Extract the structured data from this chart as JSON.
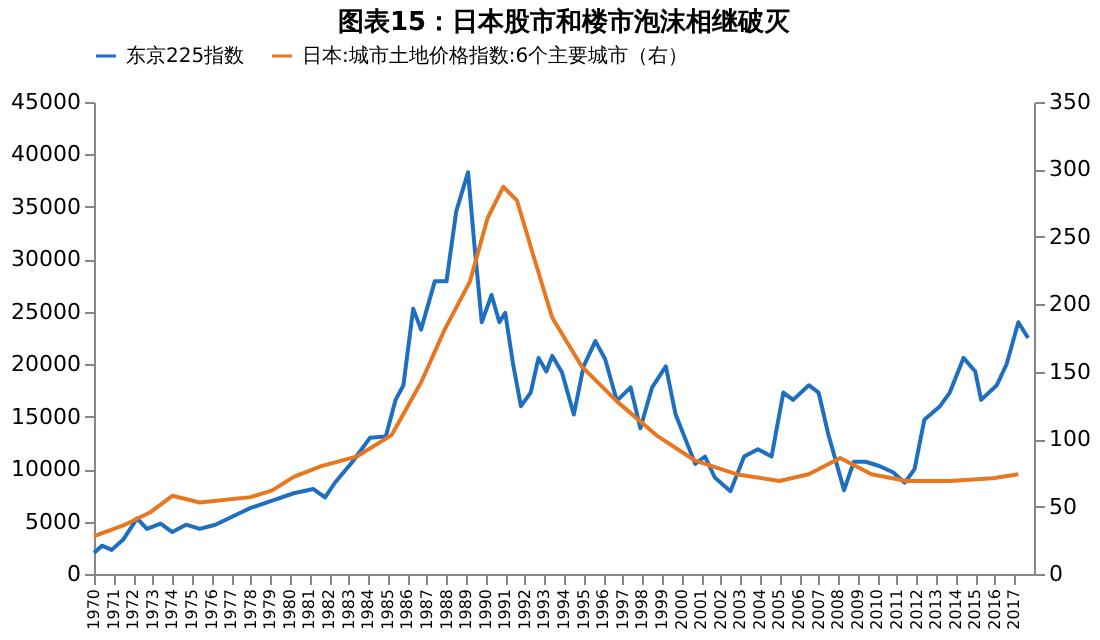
{
  "chart_data": {
    "type": "line",
    "title": "图表15：日本股市和楼市泡沫相继破灭",
    "xlim": [
      1970,
      2018
    ],
    "xticks": [
      1970,
      1971,
      1972,
      1973,
      1974,
      1975,
      1976,
      1977,
      1978,
      1979,
      1980,
      1981,
      1982,
      1983,
      1984,
      1985,
      1986,
      1987,
      1988,
      1989,
      1990,
      1991,
      1992,
      1993,
      1994,
      1995,
      1996,
      1997,
      1998,
      1999,
      2000,
      2001,
      2002,
      2003,
      2004,
      2005,
      2006,
      2007,
      2008,
      2009,
      2010,
      2011,
      2012,
      2013,
      2014,
      2015,
      2016,
      2017
    ],
    "ylim": [
      0,
      45000
    ],
    "yticks": [
      0,
      5000,
      10000,
      15000,
      20000,
      25000,
      30000,
      35000,
      40000,
      45000
    ],
    "y2lim": [
      0,
      350
    ],
    "y2ticks": [
      0,
      50,
      100,
      150,
      200,
      250,
      300,
      350
    ],
    "grid": false,
    "legend": "top",
    "marker": "none",
    "line_style": "solid",
    "series": [
      {
        "name": "东京225指数",
        "color": "#1f6fc0",
        "x": [
          1970.0,
          1970.4,
          1970.9,
          1971.5,
          1972.2,
          1972.7,
          1973.4,
          1974.0,
          1974.7,
          1975.4,
          1976.2,
          1977.1,
          1978.0,
          1979.1,
          1980.2,
          1981.2,
          1981.8,
          1982.3,
          1983.2,
          1984.1,
          1984.9,
          1985.4,
          1985.8,
          1986.3,
          1986.7,
          1987.4,
          1988.0,
          1988.5,
          1989.1,
          1989.4,
          1989.8,
          1990.3,
          1990.7,
          1991.0,
          1991.4,
          1991.8,
          1992.3,
          1992.7,
          1993.1,
          1993.4,
          1993.9,
          1994.5,
          1995.0,
          1995.6,
          1996.1,
          1996.7,
          1997.4,
          1997.9,
          1998.5,
          1999.2,
          1999.7,
          2000.7,
          2001.2,
          2001.7,
          2002.5,
          2003.2,
          2003.9,
          2004.6,
          2005.2,
          2005.7,
          2006.5,
          2007.0,
          2007.5,
          2008.3,
          2008.8,
          2009.4,
          2010.1,
          2010.8,
          2011.4,
          2011.9,
          2012.4,
          2013.2,
          2013.7,
          2014.4,
          2015.0,
          2015.3,
          2016.1,
          2016.6,
          2017.2,
          2017.7
        ],
        "values": [
          2000,
          2700,
          2300,
          3300,
          5300,
          4300,
          4800,
          4000,
          4700,
          4300,
          4700,
          5500,
          6300,
          7000,
          7700,
          8100,
          7300,
          8700,
          10700,
          13000,
          13100,
          16600,
          18000,
          25300,
          23300,
          27900,
          27900,
          34600,
          38300,
          31900,
          24000,
          26600,
          24000,
          24900,
          20000,
          16000,
          17300,
          20600,
          19300,
          20800,
          19200,
          15200,
          19800,
          22200,
          20500,
          16500,
          17800,
          13900,
          17800,
          19800,
          15200,
          10500,
          11200,
          9200,
          7900,
          11200,
          11900,
          11200,
          17300,
          16600,
          18000,
          17300,
          13300,
          8000,
          10700,
          10700,
          10300,
          9700,
          8700,
          10000,
          14700,
          16000,
          17300,
          20600,
          19300,
          16600,
          18000,
          20000,
          24000,
          22500
        ]
      },
      {
        "name": "日本:城市土地价格指数:6个主要城市（右）",
        "color": "#e87722",
        "axis": "y2",
        "x": [
          1970.0,
          1971.5,
          1972.9,
          1974.0,
          1975.4,
          1978.0,
          1979.1,
          1980.2,
          1981.6,
          1983.4,
          1985.2,
          1986.7,
          1987.9,
          1989.2,
          1990.1,
          1990.9,
          1991.6,
          1992.5,
          1993.4,
          1994.9,
          1996.7,
          1998.8,
          2000.7,
          2002.8,
          2005.0,
          2006.5,
          2008.1,
          2009.7,
          2011.5,
          2013.7,
          2015.9,
          2017.2
        ],
        "values": [
          28,
          36,
          46,
          58,
          53,
          57,
          62,
          72,
          80,
          87,
          103,
          142,
          181,
          217,
          264,
          287,
          277,
          233,
          190,
          154,
          128,
          102,
          84,
          74,
          69,
          74,
          86,
          74,
          69,
          69,
          71,
          74
        ]
      }
    ]
  }
}
